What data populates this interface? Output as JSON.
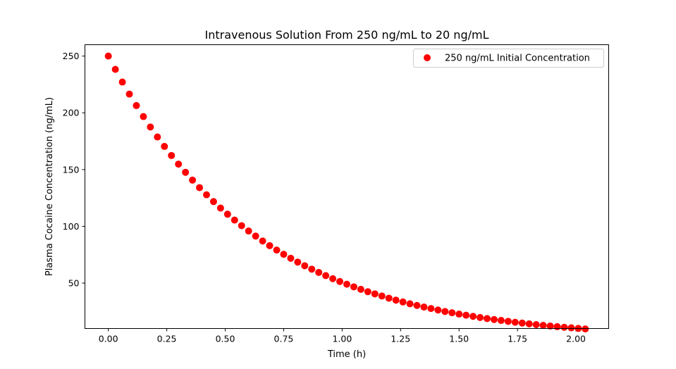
{
  "chart_data": {
    "type": "scatter",
    "title": "Intravenous Solution From 250 ng/mL to 20 ng/mL",
    "xlabel": "Time (h)",
    "ylabel": "Plasma Cocaine Concentration (ng/mL)",
    "xlim": [
      -0.1,
      2.14
    ],
    "ylim": [
      10,
      260
    ],
    "x_ticks": [
      0.0,
      0.25,
      0.5,
      0.75,
      1.0,
      1.25,
      1.5,
      1.75,
      2.0
    ],
    "x_tick_labels": [
      "0.00",
      "0.25",
      "0.50",
      "0.75",
      "1.00",
      "1.25",
      "1.50",
      "1.75",
      "2.00"
    ],
    "y_ticks": [
      50,
      100,
      150,
      200,
      250
    ],
    "y_tick_labels": [
      "50",
      "100",
      "150",
      "200",
      "250"
    ],
    "legend_position": "top-right",
    "series": [
      {
        "name": "250 ng/mL Initial Concentration",
        "color": "#ff0000",
        "marker": "circle",
        "x": [
          0.0,
          0.03,
          0.06,
          0.09,
          0.12,
          0.15,
          0.18,
          0.21,
          0.24,
          0.27,
          0.3,
          0.33,
          0.36,
          0.39,
          0.42,
          0.45,
          0.48,
          0.51,
          0.54,
          0.57,
          0.6,
          0.63,
          0.66,
          0.69,
          0.72,
          0.75,
          0.78,
          0.81,
          0.84,
          0.87,
          0.9,
          0.93,
          0.96,
          0.99,
          1.02,
          1.05,
          1.08,
          1.11,
          1.14,
          1.17,
          1.2,
          1.23,
          1.26,
          1.29,
          1.32,
          1.35,
          1.38,
          1.41,
          1.44,
          1.47,
          1.5,
          1.53,
          1.56,
          1.59,
          1.62,
          1.65,
          1.68,
          1.71,
          1.74,
          1.77,
          1.8,
          1.83,
          1.86,
          1.89,
          1.92,
          1.95,
          1.98,
          2.01,
          2.04
        ],
        "y": [
          250.0,
          238.3,
          227.1,
          216.5,
          206.4,
          196.7,
          187.5,
          178.7,
          170.4,
          162.4,
          154.8,
          147.6,
          140.7,
          134.1,
          127.8,
          121.8,
          116.1,
          110.7,
          105.5,
          100.6,
          95.9,
          91.4,
          87.1,
          83.0,
          79.1,
          75.4,
          71.9,
          68.5,
          65.3,
          62.3,
          59.4,
          56.6,
          53.9,
          51.4,
          49.0,
          46.7,
          44.5,
          42.4,
          40.5,
          38.6,
          36.7,
          35.0,
          33.4,
          31.8,
          30.3,
          28.9,
          27.6,
          26.3,
          25.0,
          23.9,
          22.7,
          21.7,
          20.7,
          19.7,
          18.8,
          17.9,
          17.1,
          16.3,
          15.5,
          14.8,
          14.1,
          13.4,
          12.8,
          12.2,
          11.6,
          11.1,
          10.6,
          10.1,
          9.6
        ]
      }
    ]
  }
}
